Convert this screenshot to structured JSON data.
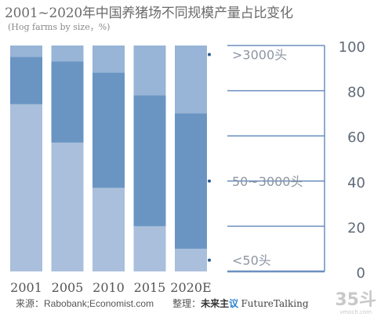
{
  "title": "2001~2020年中国养猪场不同规模产量占比变化",
  "subtitle": "(Hog farms by size，%)",
  "colors": {
    "small": "#a9bfdb",
    "medium": "#6a95c3",
    "large": "#98b4d6",
    "axis": "#6b8fbf",
    "tick_text": "#5f6b78",
    "series_label": "#8d96a2"
  },
  "chart_data": {
    "type": "bar",
    "stacked": true,
    "categories": [
      "2001",
      "2005",
      "2010",
      "2015",
      "2020E"
    ],
    "series": [
      {
        "name": "<50头",
        "values": [
          74,
          57,
          37,
          20,
          10
        ]
      },
      {
        "name": "50~3000头",
        "values": [
          21,
          36,
          51,
          58,
          60
        ]
      },
      {
        "name": ">3000头",
        "values": [
          5,
          7,
          12,
          22,
          30
        ]
      }
    ],
    "y_ticks": [
      "0",
      "20",
      "40",
      "60",
      "80",
      "100"
    ],
    "ylim": [
      0,
      100
    ],
    "y_axis_position": "right",
    "legend": "inline-right",
    "grid": false
  },
  "footer": {
    "source": "来源：Rabobank;Economist.com",
    "compiled_by_label": "整理：",
    "brand_part1": "未来主",
    "brand_part2": "议",
    "brand_part3": "FutureTalking"
  },
  "watermark": {
    "main": "35斗",
    "sub": "vmoch.com"
  }
}
